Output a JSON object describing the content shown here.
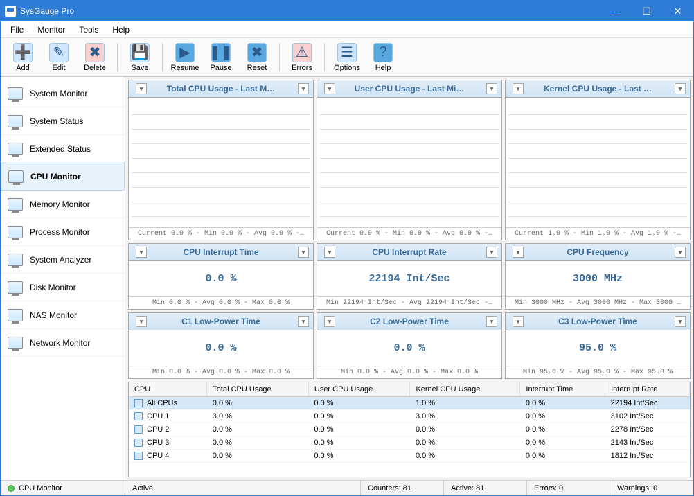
{
  "window": {
    "title": "SysGauge Pro"
  },
  "menu": [
    "File",
    "Monitor",
    "Tools",
    "Help"
  ],
  "toolbar": {
    "groups": [
      [
        {
          "id": "add",
          "label": "Add",
          "icon": "➕",
          "bg": "#cfe8ff"
        },
        {
          "id": "edit",
          "label": "Edit",
          "icon": "✎",
          "bg": "#cfe8ff"
        },
        {
          "id": "delete",
          "label": "Delete",
          "icon": "✖",
          "bg": "#f8d0d0"
        }
      ],
      [
        {
          "id": "save",
          "label": "Save",
          "icon": "💾",
          "bg": "#cfe8ff"
        }
      ],
      [
        {
          "id": "resume",
          "label": "Resume",
          "icon": "▶",
          "bg": "#5aa8e0"
        },
        {
          "id": "pause",
          "label": "Pause",
          "icon": "❚❚",
          "bg": "#5aa8e0"
        },
        {
          "id": "reset",
          "label": "Reset",
          "icon": "✖",
          "bg": "#5aa8e0"
        }
      ],
      [
        {
          "id": "errors",
          "label": "Errors",
          "icon": "⚠",
          "bg": "#f8d0d0"
        }
      ],
      [
        {
          "id": "options",
          "label": "Options",
          "icon": "☰",
          "bg": "#cfe8ff"
        },
        {
          "id": "help",
          "label": "Help",
          "icon": "?",
          "bg": "#5aa8e0"
        }
      ]
    ]
  },
  "sidebar": {
    "items": [
      {
        "id": "system-monitor",
        "label": "System Monitor"
      },
      {
        "id": "system-status",
        "label": "System Status"
      },
      {
        "id": "extended-status",
        "label": "Extended Status"
      },
      {
        "id": "cpu-monitor",
        "label": "CPU Monitor",
        "active": true
      },
      {
        "id": "memory-monitor",
        "label": "Memory Monitor"
      },
      {
        "id": "process-monitor",
        "label": "Process Monitor"
      },
      {
        "id": "system-analyzer",
        "label": "System Analyzer"
      },
      {
        "id": "disk-monitor",
        "label": "Disk Monitor"
      },
      {
        "id": "nas-monitor",
        "label": "NAS Monitor"
      },
      {
        "id": "network-monitor",
        "label": "Network Monitor"
      }
    ]
  },
  "charts": [
    {
      "title": "Total CPU Usage - Last M…",
      "footer": "Current 0.0 % - Min 0.0 % - Avg 0.0 % -…"
    },
    {
      "title": "User CPU Usage - Last Mi…",
      "footer": "Current 0.0 % - Min 0.0 % - Avg 0.0 % -…"
    },
    {
      "title": "Kernel CPU Usage - Last …",
      "footer": "Current 1.0 % - Min 1.0 % - Avg 1.0 % -…"
    }
  ],
  "metrics1": [
    {
      "title": "CPU Interrupt Time",
      "value": "0.0 %",
      "footer": "Min 0.0 % - Avg 0.0 % - Max 0.0 %"
    },
    {
      "title": "CPU Interrupt Rate",
      "value": "22194 Int/Sec",
      "footer": "Min 22194 Int/Sec - Avg 22194 Int/Sec -…"
    },
    {
      "title": "CPU Frequency",
      "value": "3000 MHz",
      "footer": "Min 3000 MHz - Avg 3000 MHz - Max 3000 …"
    }
  ],
  "metrics2": [
    {
      "title": "C1 Low-Power Time",
      "value": "0.0 %",
      "footer": "Min 0.0 % - Avg 0.0 % - Max 0.0 %"
    },
    {
      "title": "C2 Low-Power Time",
      "value": "0.0 %",
      "footer": "Min 0.0 % - Avg 0.0 % - Max 0.0 %"
    },
    {
      "title": "C3 Low-Power Time",
      "value": "95.0 %",
      "footer": "Min 95.0 % - Avg 95.0 % - Max 95.0 %"
    }
  ],
  "table": {
    "columns": [
      "CPU",
      "Total CPU Usage",
      "User CPU Usage",
      "Kernel CPU Usage",
      "Interrupt Time",
      "Interrupt Rate"
    ],
    "rows": [
      {
        "sel": true,
        "c": [
          "All CPUs",
          "0.0 %",
          "0.0 %",
          "1.0 %",
          "0.0 %",
          "22194 Int/Sec"
        ]
      },
      {
        "c": [
          "CPU 1",
          "3.0 %",
          "0.0 %",
          "3.0 %",
          "0.0 %",
          "3102 Int/Sec"
        ]
      },
      {
        "c": [
          "CPU 2",
          "0.0 %",
          "0.0 %",
          "0.0 %",
          "0.0 %",
          "2278 Int/Sec"
        ]
      },
      {
        "c": [
          "CPU 3",
          "0.0 %",
          "0.0 %",
          "0.0 %",
          "0.0 %",
          "2143 Int/Sec"
        ]
      },
      {
        "c": [
          "CPU 4",
          "0.0 %",
          "0.0 %",
          "0.0 %",
          "0.0 %",
          "1812 Int/Sec"
        ]
      }
    ]
  },
  "status": {
    "name": "CPU Monitor",
    "state": "Active",
    "counters": "Counters: 81",
    "active": "Active: 81",
    "errors": "Errors: 0",
    "warnings": "Warnings: 0"
  },
  "colors": {
    "titlebar": "#2e7cd6",
    "panel_header": "#d0e4f4",
    "accent_text": "#3a6a9a"
  }
}
